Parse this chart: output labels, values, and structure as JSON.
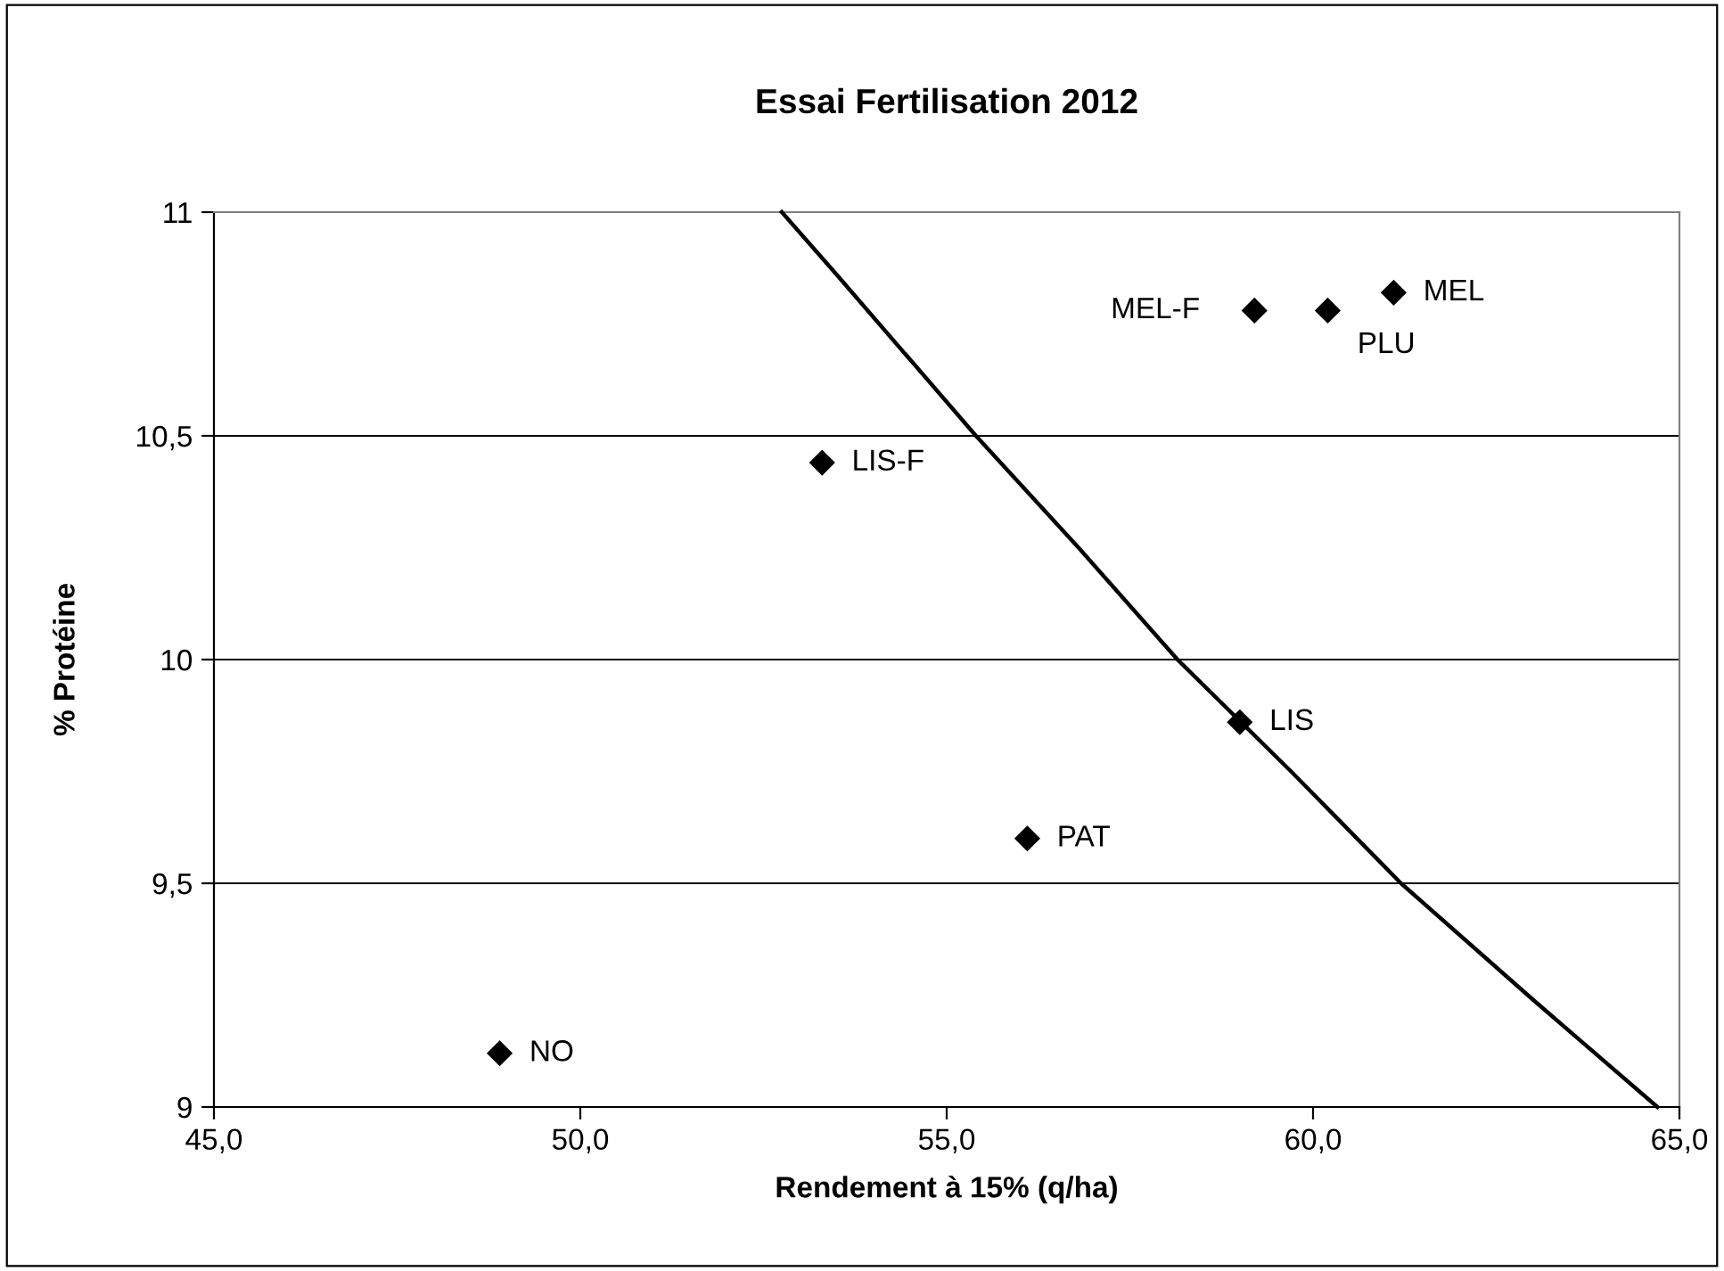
{
  "chart_data": {
    "type": "scatter",
    "title": "Essai Fertilisation 2012",
    "xlabel": "Rendement à 15% (q/ha)",
    "ylabel": "% Protéine",
    "xlim": [
      45,
      65
    ],
    "xticks": [
      {
        "value": 45,
        "label": "45,0"
      },
      {
        "value": 50,
        "label": "50,0"
      },
      {
        "value": 55,
        "label": "55,0"
      },
      {
        "value": 60,
        "label": "60,0"
      },
      {
        "value": 65,
        "label": "65,0"
      }
    ],
    "ylim": [
      9,
      11
    ],
    "yticks": [
      9,
      {
        "value": 9.5,
        "label": "9,5"
      },
      10,
      {
        "value": 10.5,
        "label": "10,5"
      },
      11
    ],
    "grid": "y",
    "legend": false,
    "series": [
      {
        "color": "#000000",
        "marker": "diamond",
        "x": [
          48.9,
          53.3,
          56.1,
          59.0,
          59.2,
          60.2,
          61.1
        ],
        "values": [
          9.12,
          10.44,
          9.6,
          9.86,
          10.78,
          10.78,
          10.82
        ]
      },
      {
        "type": "line",
        "color": "#000000",
        "marker": "none",
        "line_style": "solid",
        "x": [
          52.75,
          53.5,
          55.4,
          56.8,
          58.15,
          59.7,
          61.2,
          63.0,
          64.7
        ],
        "values": [
          11,
          10.86,
          10.5,
          10.25,
          10,
          9.75,
          9.5,
          9.24,
          9
        ]
      }
    ],
    "annotations": [
      {
        "text": "NO",
        "x": 48.9,
        "y": 9.12
      },
      {
        "text": "LIS-F",
        "x": 53.3,
        "y": 10.44
      },
      {
        "text": "PAT",
        "x": 56.1,
        "y": 9.6
      },
      {
        "text": "LIS",
        "x": 59.0,
        "y": 9.86
      },
      {
        "text": "MEL-F",
        "x": 59.2,
        "y": 10.78
      },
      {
        "text": "PLU",
        "x": 60.2,
        "y": 10.78
      },
      {
        "text": "MEL",
        "x": 61.1,
        "y": 10.82
      }
    ]
  }
}
